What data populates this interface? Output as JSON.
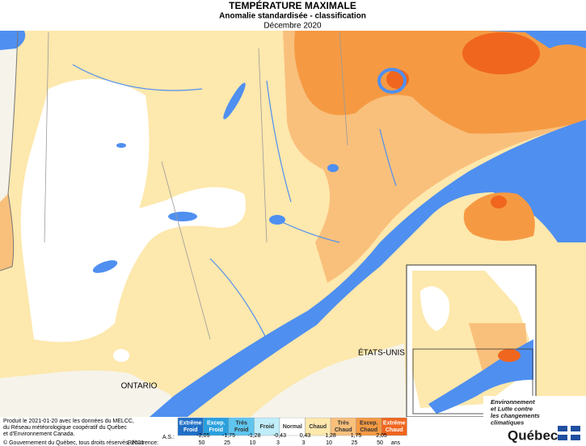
{
  "header": {
    "title": "TEMPÉRATURE MAXIMALE",
    "subtitle": "Anomalie standardisée - classification",
    "date": "Décembre 2020"
  },
  "map_labels": {
    "ontario": "ONTARIO",
    "usa": "ÉTATS-UNIS"
  },
  "legend": {
    "classes": [
      {
        "lines": [
          "Extrême",
          "Froid"
        ],
        "color": "#1f6fc6"
      },
      {
        "lines": [
          "Excep.",
          "Froid"
        ],
        "color": "#2aa0de"
      },
      {
        "lines": [
          "Très",
          "Froid"
        ],
        "color": "#5ec6ef"
      },
      {
        "lines": [
          "Froid"
        ],
        "color": "#bfeefa"
      },
      {
        "lines": [
          "Normal"
        ],
        "color": "#ffffff"
      },
      {
        "lines": [
          "Chaud"
        ],
        "color": "#fde8ad"
      },
      {
        "lines": [
          "Très",
          "Chaud"
        ],
        "color": "#f9c07c"
      },
      {
        "lines": [
          "Excep.",
          "Chaud"
        ],
        "color": "#f59a43"
      },
      {
        "lines": [
          "Extrême",
          "Chaud"
        ],
        "color": "#f0661e"
      }
    ],
    "thresholds_label": "A.S.:",
    "thresholds": [
      "-2,05",
      "-1,75",
      "-1,28",
      "-0,43",
      "0,43",
      "1,28",
      "1,75",
      "2,05"
    ],
    "recurrence_label": "Récurrence:",
    "recurrence": [
      "50",
      "25",
      "10",
      "3",
      "3",
      "10",
      "25",
      "50"
    ],
    "recurrence_unit": "ans"
  },
  "credits": {
    "lines": [
      "Produit le 2021-01-20 avec les données du MELCC,",
      "du Réseau météorologique coopératif du Québec",
      "et d'Environnement Canada."
    ],
    "copyright": "© Gouvernement du Québec, tous droits réservés, 2021"
  },
  "logo": {
    "ministry_lines": [
      "Environnement",
      "et Lutte contre",
      "les changements",
      "climatiques"
    ],
    "name": "Québec"
  }
}
